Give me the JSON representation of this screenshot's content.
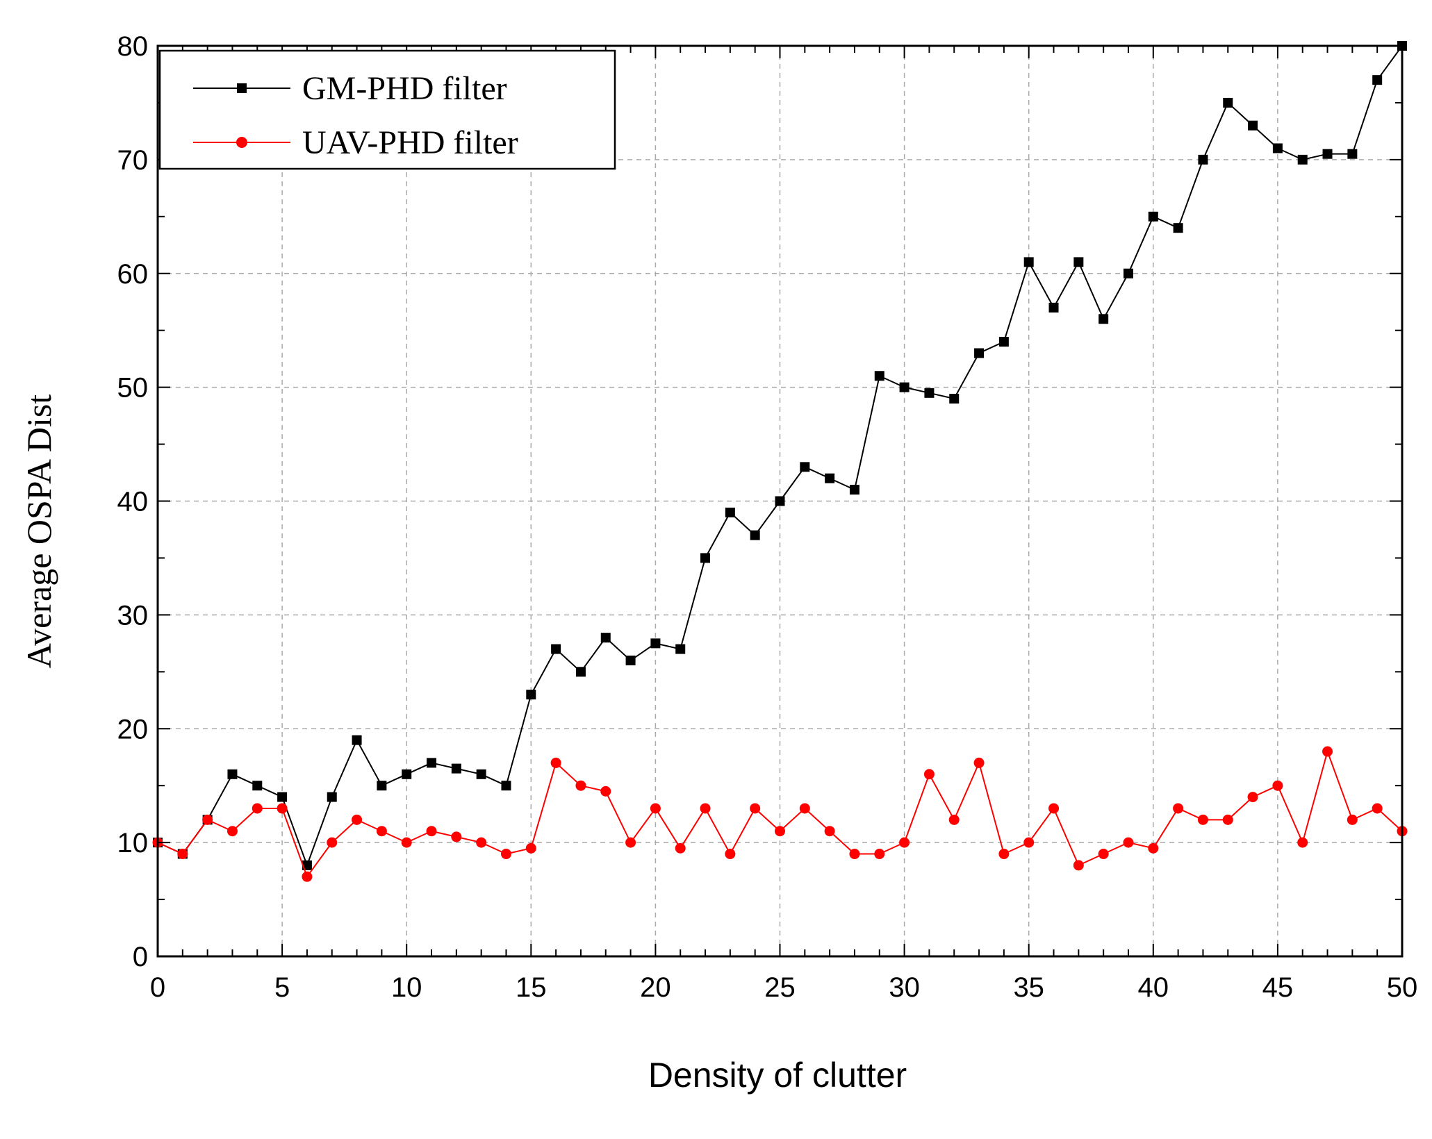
{
  "chart_data": {
    "type": "line",
    "title": "",
    "xlabel": "Density of clutter",
    "ylabel": "Average OSPA Dist",
    "xlim": [
      0,
      50
    ],
    "ylim": [
      0,
      80
    ],
    "xticks": [
      0,
      5,
      10,
      15,
      20,
      25,
      30,
      35,
      40,
      45,
      50
    ],
    "yticks": [
      0,
      10,
      20,
      30,
      40,
      50,
      60,
      70,
      80
    ],
    "grid": true,
    "legend_position": "top-left",
    "series": [
      {
        "name": "GM-PHD filter",
        "color": "#000000",
        "marker": "square",
        "x": [
          0,
          1,
          2,
          3,
          4,
          5,
          6,
          7,
          8,
          9,
          10,
          11,
          12,
          13,
          14,
          15,
          16,
          17,
          18,
          19,
          20,
          21,
          22,
          23,
          24,
          25,
          26,
          27,
          28,
          29,
          30,
          31,
          32,
          33,
          34,
          35,
          36,
          37,
          38,
          39,
          40,
          41,
          42,
          43,
          44,
          45,
          46,
          47,
          48,
          49,
          50
        ],
        "values": [
          10,
          9,
          12,
          16,
          15,
          14,
          8,
          14,
          19,
          15,
          16,
          17,
          16.5,
          16,
          15,
          23,
          27,
          25,
          28,
          26,
          27.5,
          27,
          35,
          39,
          37,
          40,
          43,
          42,
          41,
          51,
          50,
          49.5,
          49,
          53,
          54,
          61,
          57,
          61,
          56,
          60,
          65,
          64,
          70,
          75,
          73,
          71,
          70,
          70.5,
          70.5,
          77,
          80
        ]
      },
      {
        "name": "UAV-PHD filter",
        "color": "#ff0000",
        "marker": "circle",
        "x": [
          0,
          1,
          2,
          3,
          4,
          5,
          6,
          7,
          8,
          9,
          10,
          11,
          12,
          13,
          14,
          15,
          16,
          17,
          18,
          19,
          20,
          21,
          22,
          23,
          24,
          25,
          26,
          27,
          28,
          29,
          30,
          31,
          32,
          33,
          34,
          35,
          36,
          37,
          38,
          39,
          40,
          41,
          42,
          43,
          44,
          45,
          46,
          47,
          48,
          49,
          50
        ],
        "values": [
          10,
          9,
          12,
          11,
          13,
          13,
          7,
          10,
          12,
          11,
          10,
          11,
          10.5,
          10,
          9,
          9.5,
          17,
          15,
          14.5,
          10,
          13,
          9.5,
          13,
          9,
          13,
          11,
          13,
          11,
          9,
          9,
          10,
          16,
          12,
          17,
          9,
          10,
          13,
          8,
          9,
          10,
          9.5,
          13,
          12,
          12,
          14,
          15,
          10,
          18,
          12,
          13,
          11
        ]
      }
    ]
  }
}
